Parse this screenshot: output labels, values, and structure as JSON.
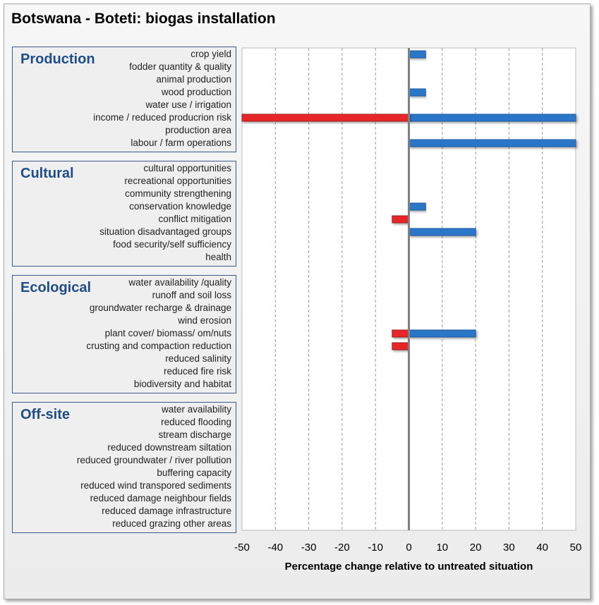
{
  "chart_data": {
    "type": "bar",
    "orientation": "horizontal",
    "title": "Botswana - Boteti: biogas installation",
    "xlabel": "Percentage change relative to untreated situation",
    "xlim": [
      -50,
      50
    ],
    "xticks": [
      "-50",
      "-40",
      "-30",
      "-20",
      "-10",
      "0",
      "10",
      "20",
      "30",
      "40",
      "50"
    ],
    "grid": "vertical dashed",
    "colors": {
      "positive": "#2a77c9",
      "negative": "#e8262b"
    },
    "groups": [
      {
        "name": "Production",
        "items": [
          {
            "label": "crop yield",
            "neg": 0,
            "pos": 5
          },
          {
            "label": "fodder quantity & quality",
            "neg": 0,
            "pos": 0
          },
          {
            "label": "animal production",
            "neg": 0,
            "pos": 0
          },
          {
            "label": "wood production",
            "neg": 0,
            "pos": 5
          },
          {
            "label": "water use / irrigation",
            "neg": 0,
            "pos": 0
          },
          {
            "label": "income / reduced producrion risk",
            "neg": -50,
            "pos": 50
          },
          {
            "label": "production area",
            "neg": 0,
            "pos": 0
          },
          {
            "label": "labour / farm operations",
            "neg": 0,
            "pos": 50
          }
        ]
      },
      {
        "name": "Cultural",
        "items": [
          {
            "label": "cultural opportunities",
            "neg": 0,
            "pos": 0
          },
          {
            "label": "recreational opportunities",
            "neg": 0,
            "pos": 0
          },
          {
            "label": "community strengthening",
            "neg": 0,
            "pos": 0
          },
          {
            "label": "conservation knowledge",
            "neg": 0,
            "pos": 5
          },
          {
            "label": "conflict mitigation",
            "neg": -5,
            "pos": 0
          },
          {
            "label": "situation disadvantaged groups",
            "neg": 0,
            "pos": 20
          },
          {
            "label": "food security/self sufficiency",
            "neg": 0,
            "pos": 0
          },
          {
            "label": "health",
            "neg": 0,
            "pos": 0
          }
        ]
      },
      {
        "name": "Ecological",
        "items": [
          {
            "label": "water availability /quality",
            "neg": 0,
            "pos": 0
          },
          {
            "label": "runoff and soil loss",
            "neg": 0,
            "pos": 0
          },
          {
            "label": "groundwater recharge & drainage",
            "neg": 0,
            "pos": 0
          },
          {
            "label": "wind erosion",
            "neg": 0,
            "pos": 0
          },
          {
            "label": "plant cover/ biomass/ om/nuts",
            "neg": -5,
            "pos": 20
          },
          {
            "label": "crusting and compaction reduction",
            "neg": -5,
            "pos": 0
          },
          {
            "label": "reduced salinity",
            "neg": 0,
            "pos": 0
          },
          {
            "label": "reduced fire risk",
            "neg": 0,
            "pos": 0
          },
          {
            "label": "biodiversity and habitat",
            "neg": 0,
            "pos": 0
          }
        ]
      },
      {
        "name": "Off-site",
        "items": [
          {
            "label": "water availability",
            "neg": 0,
            "pos": 0
          },
          {
            "label": "reduced flooding",
            "neg": 0,
            "pos": 0
          },
          {
            "label": "stream discharge",
            "neg": 0,
            "pos": 0
          },
          {
            "label": "reduced downstream siltation",
            "neg": 0,
            "pos": 0
          },
          {
            "label": "reduced groundwater / river pollution",
            "neg": 0,
            "pos": 0
          },
          {
            "label": "buffering capacity",
            "neg": 0,
            "pos": 0
          },
          {
            "label": "reduced wind transpored sediments",
            "neg": 0,
            "pos": 0
          },
          {
            "label": "reduced damage neighbour fields",
            "neg": 0,
            "pos": 0
          },
          {
            "label": "reduced damage infrastructure",
            "neg": 0,
            "pos": 0
          },
          {
            "label": "reduced grazing other areas",
            "neg": 0,
            "pos": 0
          }
        ]
      }
    ]
  }
}
